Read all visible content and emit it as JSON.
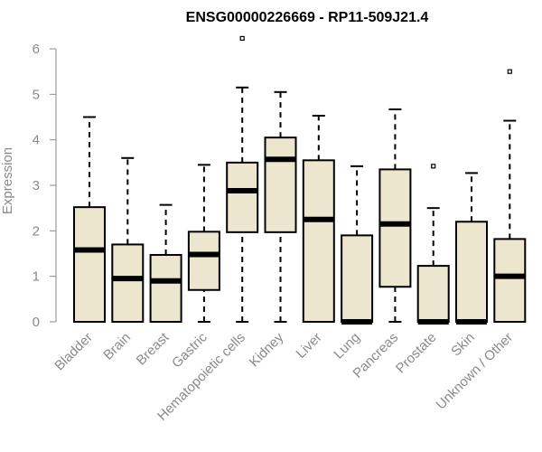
{
  "chart_data": {
    "type": "boxplot",
    "title": "ENSG00000226669 - RP11-509J21.4",
    "xlabel": "",
    "ylabel": "Expression",
    "ylim": [
      0,
      6
    ],
    "yticks": [
      0,
      1,
      2,
      3,
      4,
      5,
      6
    ],
    "colors": {
      "box_fill": "#ede6cf",
      "box_stroke": "#000000",
      "median": "#000000",
      "axis": "#8a8a8a"
    },
    "categories": [
      "Bladder",
      "Brain",
      "Breast",
      "Gastric",
      "Hematopoietic cells",
      "Kidney",
      "Liver",
      "Lung",
      "Pancreas",
      "Prostate",
      "Skin",
      "Unknown / Other"
    ],
    "boxes": [
      {
        "name": "Bladder",
        "whisker_low": 0,
        "q1": 0,
        "median": 1.58,
        "q3": 2.52,
        "whisker_high": 4.5,
        "outliers": []
      },
      {
        "name": "Brain",
        "whisker_low": 0,
        "q1": 0,
        "median": 0.95,
        "q3": 1.7,
        "whisker_high": 3.6,
        "outliers": []
      },
      {
        "name": "Breast",
        "whisker_low": 0,
        "q1": 0,
        "median": 0.9,
        "q3": 1.47,
        "whisker_high": 2.57,
        "outliers": []
      },
      {
        "name": "Gastric",
        "whisker_low": 0,
        "q1": 0.7,
        "median": 1.48,
        "q3": 1.98,
        "whisker_high": 3.45,
        "outliers": []
      },
      {
        "name": "Hematopoietic cells",
        "whisker_low": 0,
        "q1": 1.97,
        "median": 2.88,
        "q3": 3.5,
        "whisker_high": 5.15,
        "outliers": [
          6.23
        ]
      },
      {
        "name": "Kidney",
        "whisker_low": 0,
        "q1": 1.97,
        "median": 3.57,
        "q3": 4.05,
        "whisker_high": 5.05,
        "outliers": []
      },
      {
        "name": "Liver",
        "whisker_low": 0,
        "q1": 0,
        "median": 2.25,
        "q3": 3.55,
        "whisker_high": 4.53,
        "outliers": []
      },
      {
        "name": "Lung",
        "whisker_low": 0,
        "q1": 0,
        "median": 0,
        "q3": 1.9,
        "whisker_high": 3.42,
        "outliers": []
      },
      {
        "name": "Pancreas",
        "whisker_low": 0,
        "q1": 0.77,
        "median": 2.15,
        "q3": 3.35,
        "whisker_high": 4.67,
        "outliers": []
      },
      {
        "name": "Prostate",
        "whisker_low": 0,
        "q1": 0,
        "median": 0,
        "q3": 1.23,
        "whisker_high": 2.5,
        "outliers": [
          3.42
        ]
      },
      {
        "name": "Skin",
        "whisker_low": 0,
        "q1": 0,
        "median": 0,
        "q3": 2.2,
        "whisker_high": 3.27,
        "outliers": []
      },
      {
        "name": "Unknown / Other",
        "whisker_low": 0,
        "q1": 0,
        "median": 1.0,
        "q3": 1.82,
        "whisker_high": 4.42,
        "outliers": [
          5.5
        ]
      }
    ]
  }
}
